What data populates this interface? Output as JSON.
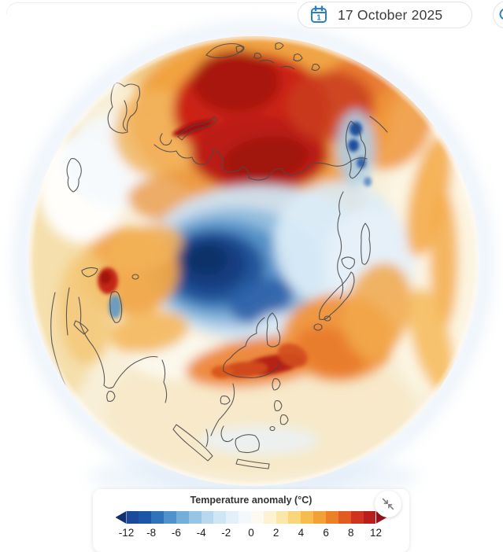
{
  "header": {
    "date": "17 October 2025",
    "calendar_icon_day": "1"
  },
  "legend": {
    "title": "Temperature anomaly (°C)",
    "ticks": [
      "-12",
      "-8",
      "-6",
      "-4",
      "-2",
      "0",
      "2",
      "4",
      "6",
      "8",
      "12"
    ],
    "segment_colors": [
      "#1a4a9c",
      "#1d55a9",
      "#3173b8",
      "#4f93ca",
      "#74afd9",
      "#97c5e5",
      "#b7d8ee",
      "#d0e6f5",
      "#e4f0f9",
      "#f2f8fc",
      "#fdfbf1",
      "#fdf3d2",
      "#fbe7a6",
      "#f9d778",
      "#f6bd4e",
      "#f2a135",
      "#ec8029",
      "#e25b20",
      "#cf3420",
      "#b81f1c"
    ],
    "arrow_left_color": "#10316e",
    "arrow_right_color": "#97121a",
    "range": [
      -12,
      12
    ]
  },
  "colors": {
    "accent_blue": "#2b80c4",
    "text_dark": "#3c3c3c",
    "halo_blue": "#d3e3f4"
  },
  "icons": {
    "calendar": "calendar-icon",
    "collapse": "collapse-arrows-icon",
    "partial_right_button": "circle-icon"
  }
}
